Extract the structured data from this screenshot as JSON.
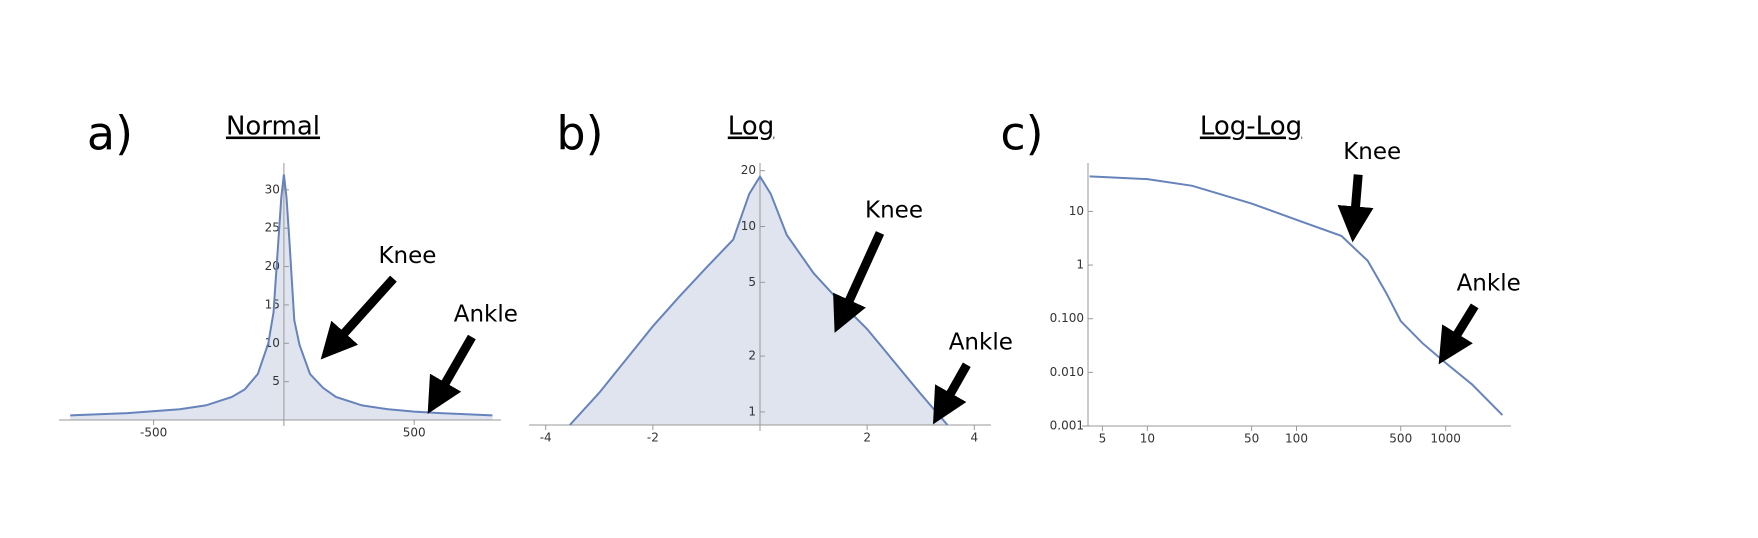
{
  "chart_data": [
    {
      "type": "area",
      "panel_label": "a)",
      "title": "Normal",
      "color": "#6683bb",
      "fill": "#dfe4ef",
      "x": [
        -820,
        -600,
        -400,
        -300,
        -200,
        -150,
        -100,
        -60,
        -40,
        -20,
        -10,
        0,
        10,
        20,
        40,
        60,
        100,
        150,
        200,
        300,
        400,
        500,
        600,
        800
      ],
      "values": [
        0.6,
        0.9,
        1.4,
        1.9,
        3,
        4,
        6,
        10,
        14,
        24,
        29,
        32,
        29,
        24,
        13,
        9.8,
        6,
        4.2,
        3,
        1.9,
        1.4,
        1.1,
        0.9,
        0.6
      ],
      "xlim": [
        -840,
        810
      ],
      "ylim": [
        0,
        33.5
      ],
      "xticks": [
        -500,
        500
      ],
      "yticks": [
        5,
        10,
        15,
        20,
        25,
        30
      ],
      "annotations": [
        {
          "text": "Knee",
          "x": 144,
          "y": 8
        },
        {
          "text": "Ankle",
          "x": 560,
          "y": 1.3
        }
      ]
    },
    {
      "type": "area",
      "panel_label": "b)",
      "title": "Log",
      "color": "#6683bb",
      "fill": "#dfe4ef",
      "yscale": "log",
      "x": [
        -3.55,
        -3,
        -2,
        -1.5,
        -1,
        -0.5,
        -0.2,
        0,
        0.2,
        0.5,
        1,
        1.5,
        2,
        3,
        3.5
      ],
      "values": [
        0.85,
        1.27,
        2.9,
        4.2,
        6,
        8.5,
        15,
        18.6,
        15,
        9,
        5.6,
        3.9,
        2.8,
        1.25,
        0.85
      ],
      "xlim": [
        -4.2,
        4.2
      ],
      "ylim": [
        0.85,
        22
      ],
      "xticks": [
        -4,
        -2,
        2,
        4
      ],
      "yticks": [
        1,
        2,
        5,
        10,
        20
      ],
      "annotations": [
        {
          "text": "Knee",
          "x": 1.4,
          "y": 2.7
        },
        {
          "text": "Ankle",
          "x": 3.3,
          "y": 0.93
        }
      ]
    },
    {
      "type": "line",
      "panel_label": "c)",
      "title": "Log-Log",
      "color": "#6683bb",
      "xscale": "log",
      "yscale": "log",
      "x": [
        4.1,
        10,
        20,
        50,
        100,
        200,
        300,
        400,
        500,
        700,
        1000,
        1500,
        2400
      ],
      "values": [
        45,
        40,
        30,
        14,
        7,
        3.5,
        1.2,
        0.3,
        0.09,
        0.035,
        0.015,
        0.006,
        0.0016
      ],
      "xlim": [
        4,
        2500
      ],
      "ylim": [
        0.001,
        80
      ],
      "xticks": [
        5,
        10,
        50,
        100,
        500,
        1000
      ],
      "yticks": [
        {
          "value": 0.001,
          "label": "0.001"
        },
        {
          "value": 0.01,
          "label": "0.010"
        },
        {
          "value": 0.1,
          "label": "0.100"
        },
        1,
        10
      ],
      "annotations": [
        {
          "text": "Knee",
          "x": 240,
          "y": 3.7
        },
        {
          "text": "Ankle",
          "x": 955,
          "y": 0.0186
        }
      ]
    }
  ]
}
